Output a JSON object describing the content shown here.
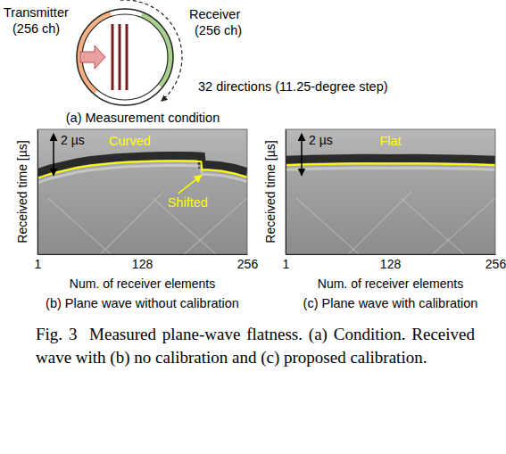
{
  "diagram": {
    "transmitter": "Transmitter",
    "transmitter_channels": "(256 ch)",
    "receiver": "Receiver",
    "receiver_channels": "(256 ch)",
    "rotation": "32 directions (11.25-degree step)",
    "caption": "(a) Measurement condition"
  },
  "chart_data": [
    {
      "type": "line",
      "title": "(b) Plane wave without calibration",
      "x_label": "Num. of receiver elements",
      "y_label": "Received time [µs]",
      "x": [
        1,
        16,
        32,
        48,
        64,
        80,
        96,
        112,
        128,
        144,
        160,
        176,
        192,
        200,
        201,
        208,
        224,
        240,
        256
      ],
      "values": [
        2.35,
        2.15,
        2.0,
        1.85,
        1.75,
        1.68,
        1.62,
        1.58,
        1.55,
        1.53,
        1.52,
        1.52,
        1.53,
        1.55,
        1.95,
        1.95,
        2.0,
        2.12,
        2.3
      ],
      "color": "#ffff00",
      "xlim": [
        1,
        256
      ],
      "ylim": [
        0,
        6
      ],
      "xticks": [
        1,
        128,
        256
      ],
      "tick_labels": "x",
      "annotations": [
        "Curved",
        "Shifted"
      ],
      "scale_bar": {
        "value": 2,
        "label": "2 µs"
      }
    },
    {
      "type": "line",
      "title": "(c) Plane wave with calibration",
      "x_label": "Num. of receiver elements",
      "y_label": "Received time [µs]",
      "x": [
        1,
        32,
        64,
        96,
        128,
        160,
        192,
        224,
        256
      ],
      "values": [
        1.72,
        1.68,
        1.66,
        1.64,
        1.65,
        1.64,
        1.66,
        1.68,
        1.72
      ],
      "color": "#ffff00",
      "xlim": [
        1,
        256
      ],
      "ylim": [
        0,
        6
      ],
      "xticks": [
        1,
        128,
        256
      ],
      "tick_labels": "x",
      "annotations": [
        "Flat"
      ],
      "scale_bar": {
        "value": 2,
        "label": "2 µs"
      }
    }
  ],
  "caption": "Fig. 3  Measured plane-wave flatness. (a) Condition. Received wave with (b) no calibration and (c) proposed calibration."
}
